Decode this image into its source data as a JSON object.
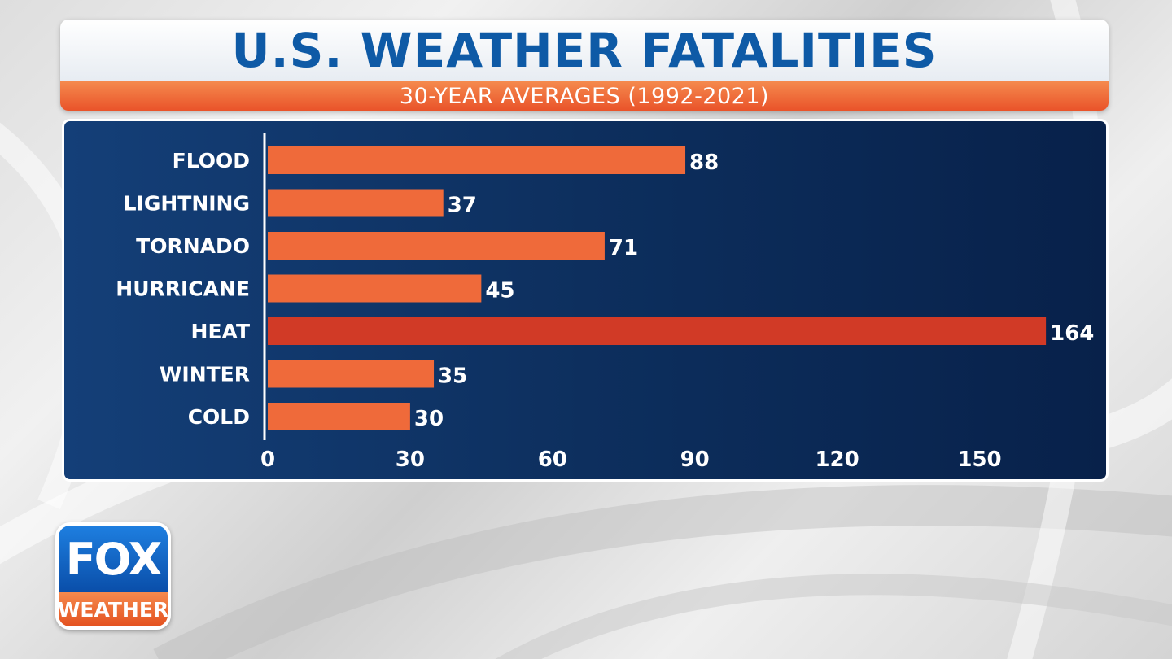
{
  "header": {
    "title": "U.S. WEATHER FATALITIES",
    "subtitle": "30-YEAR AVERAGES (1992-2021)"
  },
  "logo": {
    "line1": "FOX",
    "line2": "WEATHER"
  },
  "colors": {
    "bar": "#ef6a3a",
    "bar_highlight": "#d13a26",
    "title": "#0e5aa6",
    "panel": "#0d2f5e"
  },
  "chart_data": {
    "type": "bar",
    "orientation": "horizontal",
    "title": "U.S. WEATHER FATALITIES",
    "subtitle": "30-YEAR AVERAGES (1992-2021)",
    "categories": [
      "FLOOD",
      "LIGHTNING",
      "TORNADO",
      "HURRICANE",
      "HEAT",
      "WINTER",
      "COLD"
    ],
    "values": [
      88,
      37,
      71,
      45,
      164,
      35,
      30
    ],
    "highlight": "HEAT",
    "xlim": [
      0,
      170
    ],
    "xticks": [
      0,
      30,
      60,
      90,
      120,
      150
    ],
    "grid": false,
    "data_labels": true
  }
}
